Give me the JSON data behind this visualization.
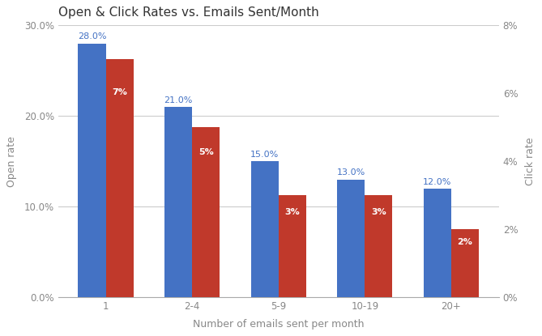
{
  "title": "Open & Click Rates vs. Emails Sent/Month",
  "xlabel": "Number of emails sent per month",
  "ylabel_left": "Open rate",
  "ylabel_right": "Click rate",
  "categories": [
    "1",
    "2-4",
    "5-9",
    "10-19",
    "20+"
  ],
  "open_rates": [
    0.28,
    0.21,
    0.15,
    0.13,
    0.12
  ],
  "click_rates": [
    0.07,
    0.05,
    0.03,
    0.03,
    0.02
  ],
  "open_labels": [
    "28.0%",
    "21.0%",
    "15.0%",
    "13.0%",
    "12.0%"
  ],
  "click_labels": [
    "7%",
    "5%",
    "3%",
    "3%",
    "2%"
  ],
  "bar_color_blue": "#4472c4",
  "bar_color_red": "#c0392b",
  "ylim_left": [
    0,
    0.3
  ],
  "ylim_right": [
    0,
    0.08
  ],
  "yticks_left": [
    0.0,
    0.1,
    0.2,
    0.3
  ],
  "ytick_labels_left": [
    "0.0%",
    "10.0%",
    "20.0%",
    "30.0%"
  ],
  "yticks_right": [
    0.0,
    0.02,
    0.04,
    0.06,
    0.08
  ],
  "ytick_labels_right": [
    "0%",
    "2%",
    "4%",
    "6%",
    "8%"
  ],
  "background_color": "#ffffff",
  "title_fontsize": 11,
  "label_fontsize": 8,
  "axis_label_fontsize": 9,
  "tick_fontsize": 8.5,
  "bar_width": 0.32,
  "tick_color": "#888888",
  "grid_color": "#cccccc",
  "open_label_color": "#4472c4"
}
